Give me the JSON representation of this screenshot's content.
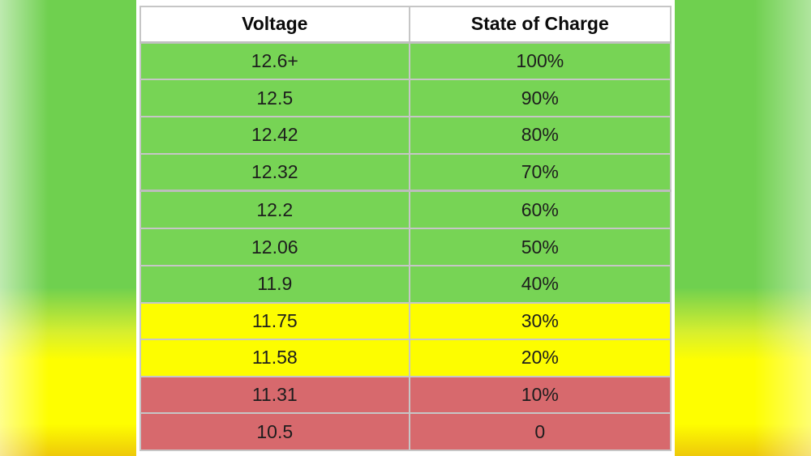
{
  "chart_data": {
    "type": "table",
    "columns": [
      "Voltage",
      "State of Charge"
    ],
    "rows": [
      [
        "12.6+",
        "100%"
      ],
      [
        "12.5",
        "90%"
      ],
      [
        "12.42",
        "80%"
      ],
      [
        "12.32",
        "70%"
      ],
      [
        "12.2",
        "60%"
      ],
      [
        "12.06",
        "50%"
      ],
      [
        "11.9",
        "40%"
      ],
      [
        "11.75",
        "30%"
      ],
      [
        "11.58",
        "20%"
      ],
      [
        "11.31",
        "10%"
      ],
      [
        "10.5",
        "0"
      ]
    ],
    "row_colors": [
      "green",
      "green",
      "green",
      "green",
      "green",
      "green",
      "green",
      "yellow",
      "yellow",
      "red",
      "red"
    ],
    "title": "",
    "legend": "none",
    "grid": "on"
  },
  "table": {
    "headers": [
      "Voltage",
      "State of Charge"
    ],
    "rows": [
      {
        "voltage": "12.6+",
        "soc": "100%",
        "status": "green"
      },
      {
        "voltage": "12.5",
        "soc": "90%",
        "status": "green"
      },
      {
        "voltage": "12.42",
        "soc": "80%",
        "status": "green"
      },
      {
        "voltage": "12.32",
        "soc": "70%",
        "status": "green"
      },
      {
        "voltage": "12.2",
        "soc": "60%",
        "status": "green"
      },
      {
        "voltage": "12.06",
        "soc": "50%",
        "status": "green"
      },
      {
        "voltage": "11.9",
        "soc": "40%",
        "status": "green"
      },
      {
        "voltage": "11.75",
        "soc": "30%",
        "status": "yellow"
      },
      {
        "voltage": "11.58",
        "soc": "20%",
        "status": "yellow"
      },
      {
        "voltage": "11.31",
        "soc": "10%",
        "status": "red"
      },
      {
        "voltage": "10.5",
        "soc": "0",
        "status": "red"
      }
    ]
  },
  "colors": {
    "row_green": "#77d455",
    "row_yellow": "#fdfd00",
    "row_red": "#d7696d",
    "grid_line": "#c6c6c6",
    "outer_border": "#a6a6a6",
    "header_bg": "#ffffff",
    "bg_green": "#6fd04f",
    "bg_yellow": "#fefe00",
    "text": "#1d1d1d"
  }
}
